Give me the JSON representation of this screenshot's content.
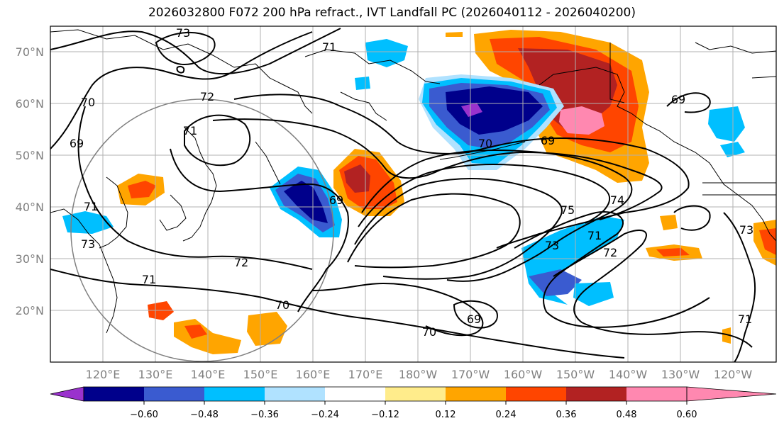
{
  "title": "2026032800 F072 200 hPa refract., IVT Landfall PC (2026040112 - 2026040200)",
  "lat_labels": [
    "70°N",
    "60°N",
    "50°N",
    "40°N",
    "30°N",
    "20°N"
  ],
  "lon_labels": [
    "120°E",
    "130°E",
    "140°E",
    "150°E",
    "160°E",
    "170°E",
    "180°W",
    "170°W",
    "160°W",
    "150°W",
    "140°W",
    "130°W",
    "120°W"
  ],
  "colorbar": {
    "ticks": [
      "−0.60",
      "−0.48",
      "−0.36",
      "−0.24",
      "−0.12",
      "0.12",
      "0.24",
      "0.36",
      "0.48",
      "0.60"
    ],
    "colors": [
      "#9a32cd",
      "#00008b",
      "#3a5bd0",
      "#00bfff",
      "#b0e2ff",
      "#ffffff",
      "#ffec8b",
      "#ffa500",
      "#ff4500",
      "#b22222",
      "#ff88b0"
    ]
  },
  "contour_labels": [
    {
      "text": "73"
    },
    {
      "text": "71"
    },
    {
      "text": "72"
    },
    {
      "text": "70"
    },
    {
      "text": "69"
    },
    {
      "text": "71"
    },
    {
      "text": "69"
    },
    {
      "text": "70"
    },
    {
      "text": "69"
    },
    {
      "text": "69"
    },
    {
      "text": "75"
    },
    {
      "text": "74"
    },
    {
      "text": "73"
    },
    {
      "text": "71"
    },
    {
      "text": "72"
    },
    {
      "text": "72"
    },
    {
      "text": "71"
    },
    {
      "text": "70"
    },
    {
      "text": "70"
    },
    {
      "text": "69"
    },
    {
      "text": "71"
    },
    {
      "text": "73"
    },
    {
      "text": "71"
    },
    {
      "text": "73"
    }
  ]
}
